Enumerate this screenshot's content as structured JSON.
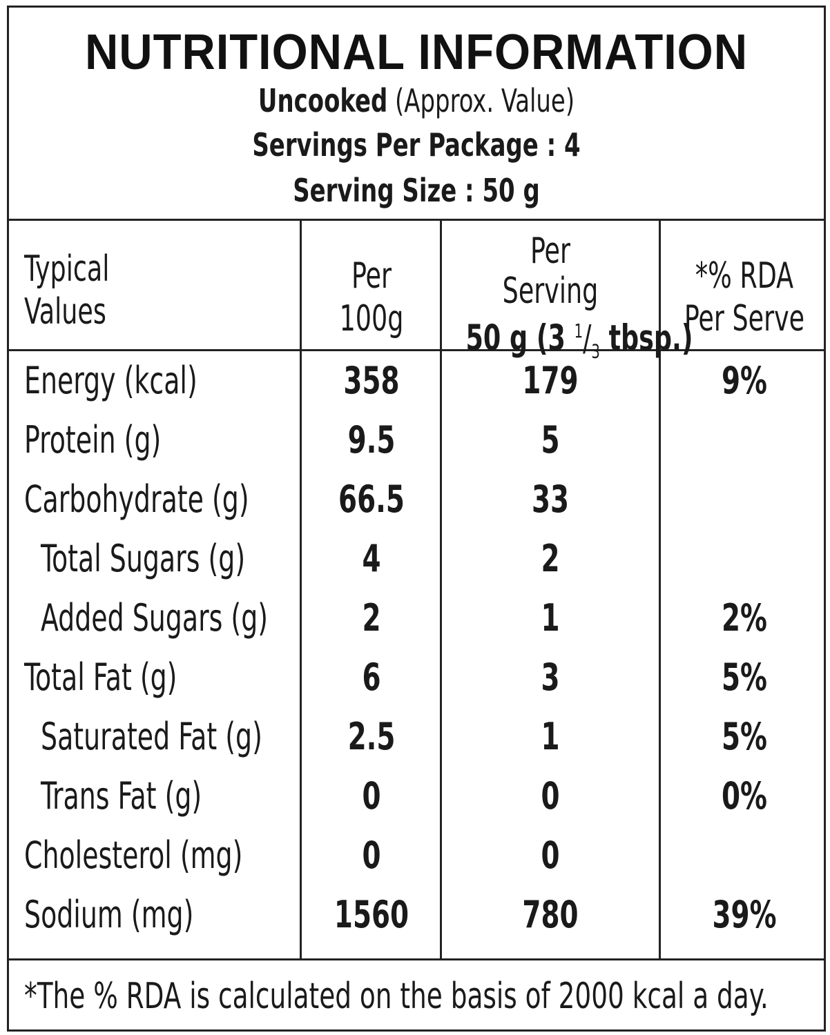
{
  "header": {
    "title": "NUTRITIONAL INFORMATION",
    "uncooked": "Uncooked",
    "approx": "(Approx. Value)",
    "servings_per_package": "Servings Per Package : 4",
    "serving_size": "Serving Size : 50 g"
  },
  "table": {
    "columns": {
      "typical_1": "Typical",
      "typical_2": "Values",
      "per100_1": "Per",
      "per100_2": "100g",
      "perserv_1": "Per",
      "perserv_2": "Serving",
      "perserv_3a": "50 g (3 ",
      "perserv_3b": "1",
      "perserv_3c": "/",
      "perserv_3d": "3",
      "perserv_3e": " tbsp.)",
      "rda_1": "*% RDA",
      "rda_2": "Per Serve"
    },
    "rows": [
      {
        "label": "Energy (kcal)",
        "per100": "358",
        "perserving": "179",
        "rda": "9%"
      },
      {
        "label": "Protein (g)",
        "per100": "9.5",
        "perserving": "5",
        "rda": ""
      },
      {
        "label": "Carbohydrate (g)",
        "per100": "66.5",
        "perserving": "33",
        "rda": ""
      },
      {
        "label": "Total Sugars (g)",
        "per100": "4",
        "perserving": "2",
        "rda": ""
      },
      {
        "label": "Added Sugars (g)",
        "per100": "2",
        "perserving": "1",
        "rda": "2%"
      },
      {
        "label": "Total Fat (g)",
        "per100": "6",
        "perserving": "3",
        "rda": "5%"
      },
      {
        "label": "Saturated Fat (g)",
        "per100": "2.5",
        "perserving": "1",
        "rda": "5%"
      },
      {
        "label": "Trans Fat (g)",
        "per100": "0",
        "perserving": "0",
        "rda": "0%"
      },
      {
        "label": "Cholesterol (mg)",
        "per100": "0",
        "perserving": "0",
        "rda": ""
      },
      {
        "label": "Sodium (mg)",
        "per100": "1560",
        "perserving": "780",
        "rda": "39%"
      }
    ]
  },
  "footnote": "*The % RDA is calculated on the basis of 2000 kcal a day."
}
